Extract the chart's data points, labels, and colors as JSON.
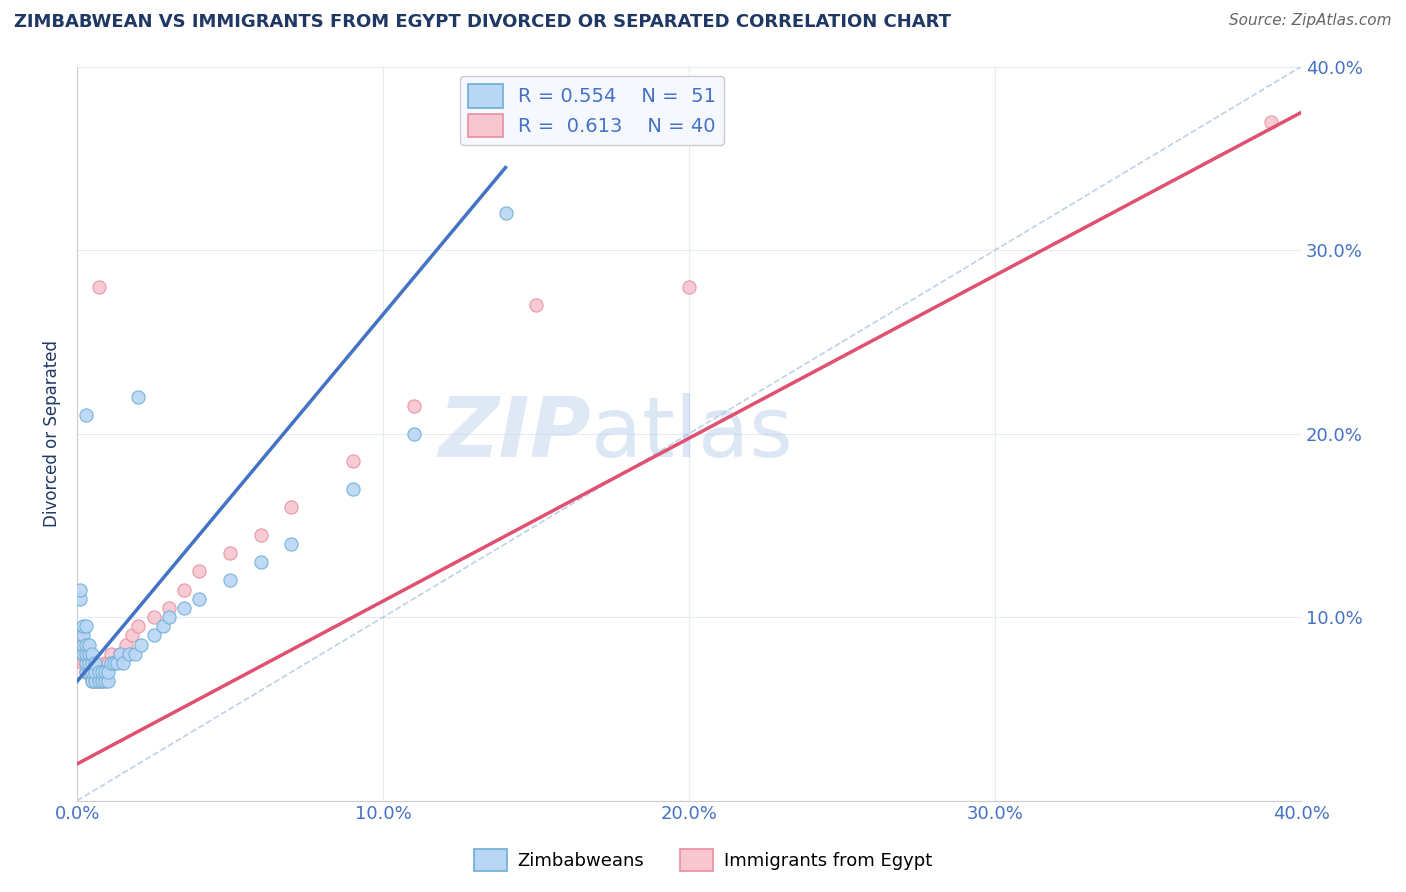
{
  "title": "ZIMBABWEAN VS IMMIGRANTS FROM EGYPT DIVORCED OR SEPARATED CORRELATION CHART",
  "source": "Source: ZipAtlas.com",
  "ylabel": "Divorced or Separated",
  "xmin": 0.0,
  "xmax": 0.4,
  "ymin": 0.0,
  "ymax": 0.4,
  "R_blue": 0.554,
  "N_blue": 51,
  "R_pink": 0.613,
  "N_pink": 40,
  "blue_x": [
    0.001,
    0.001,
    0.002,
    0.002,
    0.002,
    0.002,
    0.003,
    0.003,
    0.003,
    0.003,
    0.003,
    0.004,
    0.004,
    0.004,
    0.004,
    0.005,
    0.005,
    0.005,
    0.005,
    0.006,
    0.006,
    0.006,
    0.007,
    0.007,
    0.008,
    0.008,
    0.009,
    0.009,
    0.01,
    0.01,
    0.011,
    0.012,
    0.013,
    0.014,
    0.015,
    0.017,
    0.019,
    0.021,
    0.025,
    0.028,
    0.03,
    0.035,
    0.04,
    0.05,
    0.06,
    0.07,
    0.09,
    0.11,
    0.14,
    0.02,
    0.003
  ],
  "blue_y": [
    0.11,
    0.115,
    0.08,
    0.085,
    0.09,
    0.095,
    0.07,
    0.075,
    0.08,
    0.085,
    0.095,
    0.07,
    0.075,
    0.08,
    0.085,
    0.065,
    0.07,
    0.075,
    0.08,
    0.065,
    0.07,
    0.075,
    0.065,
    0.07,
    0.065,
    0.07,
    0.065,
    0.07,
    0.065,
    0.07,
    0.075,
    0.075,
    0.075,
    0.08,
    0.075,
    0.08,
    0.08,
    0.085,
    0.09,
    0.095,
    0.1,
    0.105,
    0.11,
    0.12,
    0.13,
    0.14,
    0.17,
    0.2,
    0.32,
    0.22,
    0.21
  ],
  "pink_x": [
    0.001,
    0.001,
    0.002,
    0.002,
    0.002,
    0.003,
    0.003,
    0.003,
    0.004,
    0.004,
    0.005,
    0.005,
    0.005,
    0.006,
    0.006,
    0.007,
    0.007,
    0.008,
    0.008,
    0.009,
    0.01,
    0.011,
    0.012,
    0.014,
    0.016,
    0.018,
    0.02,
    0.025,
    0.03,
    0.035,
    0.04,
    0.05,
    0.06,
    0.07,
    0.09,
    0.11,
    0.15,
    0.2,
    0.39,
    0.007
  ],
  "pink_y": [
    0.085,
    0.09,
    0.075,
    0.08,
    0.085,
    0.07,
    0.075,
    0.08,
    0.07,
    0.075,
    0.065,
    0.07,
    0.075,
    0.065,
    0.07,
    0.065,
    0.07,
    0.065,
    0.07,
    0.075,
    0.075,
    0.08,
    0.075,
    0.08,
    0.085,
    0.09,
    0.095,
    0.1,
    0.105,
    0.115,
    0.125,
    0.135,
    0.145,
    0.16,
    0.185,
    0.215,
    0.27,
    0.28,
    0.37,
    0.28
  ],
  "blue_line_x0": 0.0,
  "blue_line_y0": 0.065,
  "blue_line_x1": 0.14,
  "blue_line_y1": 0.345,
  "pink_line_x0": 0.0,
  "pink_line_y0": 0.02,
  "pink_line_x1": 0.4,
  "pink_line_y1": 0.375,
  "diag_line_color": "#b8cce4",
  "watermark_zip": "ZIP",
  "watermark_atlas": "atlas",
  "blue_color": "#bad6f5",
  "blue_edge_color": "#6baed6",
  "blue_line_color": "#4472c4",
  "pink_color": "#f7c6d0",
  "pink_edge_color": "#e88fa0",
  "pink_line_color": "#e05070",
  "background_color": "#ffffff",
  "title_color": "#1f3864",
  "source_color": "#666666",
  "axis_label_color": "#1f3864",
  "tick_label_color": "#4472c4",
  "grid_color": "#dce6f1"
}
